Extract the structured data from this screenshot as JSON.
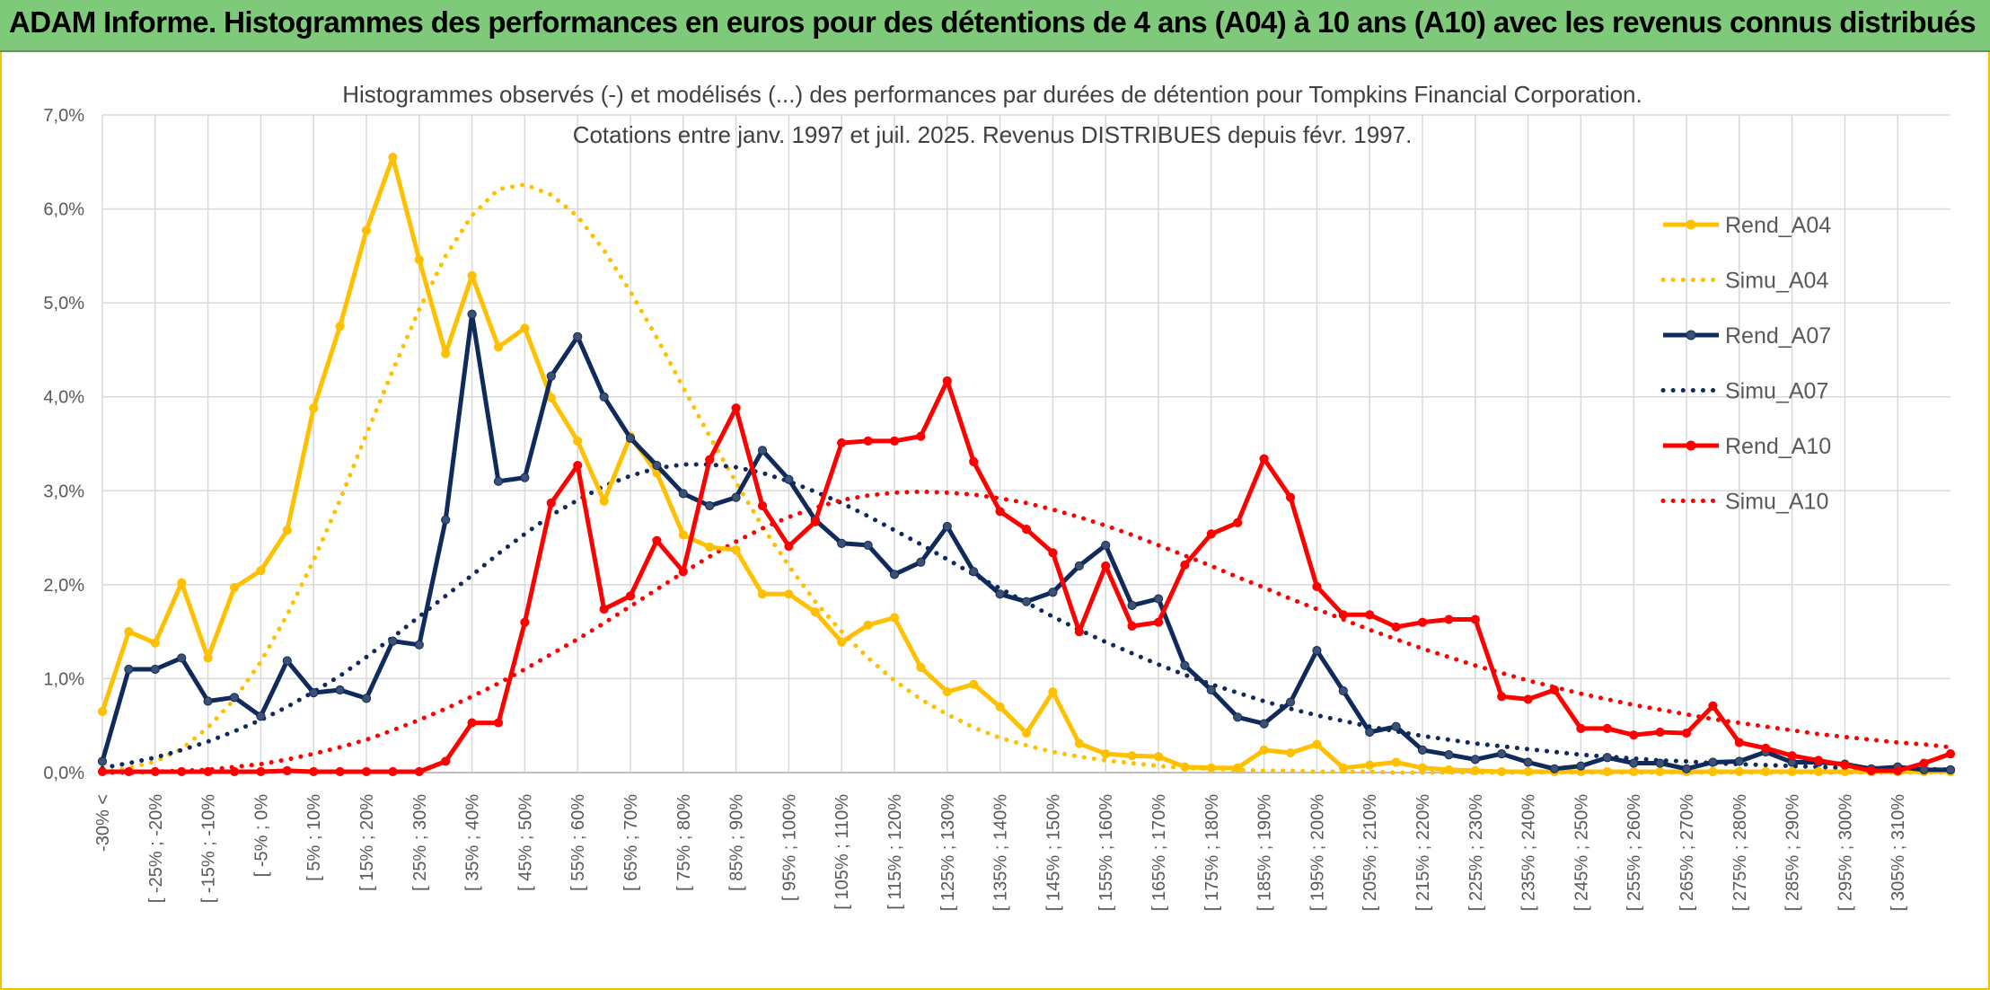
{
  "header": {
    "title": "ADAM Informe. Histogrammes des performances en euros pour des détentions de 4 ans (A04) à 10 ans (A10) avec les revenus connus distribués"
  },
  "chart_data": {
    "type": "line",
    "title_line1": "Histogrammes observés (-) et modélisés (...) des performances par durées de détention pour Tompkins Financial Corporation.",
    "title_line2": "Cotations entre janv. 1997 et juil. 2025. Revenus DISTRIBUES depuis févr. 1997.",
    "xlabel": "",
    "ylabel": "",
    "ylim": [
      0,
      7
    ],
    "y_ticks": [
      "0,0%",
      "1,0%",
      "2,0%",
      "3,0%",
      "4,0%",
      "5,0%",
      "6,0%",
      "7,0%"
    ],
    "x_tick_labels": [
      "-30% <",
      "[ -25% ; -20%",
      "[ -15% ; -10%",
      "[ -5% ; 0%",
      "[ 5% ; 10%",
      "[ 15% ; 20%",
      "[ 25% ; 30%",
      "[ 35% ; 40%",
      "[ 45% ; 50%",
      "[ 55% ; 60%",
      "[ 65% ; 70%",
      "[ 75% ; 80%",
      "[ 85% ; 90%",
      "[ 95% ; 100%",
      "[ 105% ; 110%",
      "[ 115% ; 120%",
      "[ 125% ; 130%",
      "[ 135% ; 140%",
      "[ 145% ; 150%",
      "[ 155% ; 160%",
      "[ 165% ; 170%",
      "[ 175% ; 180%",
      "[ 185% ; 190%",
      "[ 195% ; 200%",
      "[ 205% ; 210%",
      "[ 215% ; 220%",
      "[ 225% ; 230%",
      "[ 235% ; 240%",
      "[ 245% ; 250%",
      "[ 255% ; 260%",
      "[ 265% ; 270%",
      "[ 275% ; 280%",
      "[ 285% ; 290%",
      "[ 295% ; 300%",
      "[ 305% ; 310%"
    ],
    "grid": true,
    "legend_position": "right",
    "series": [
      {
        "name": "Rend_A04",
        "color": "#ffc000",
        "style": "solid",
        "markers": true,
        "values": [
          0.65,
          1.5,
          1.38,
          2.02,
          1.22,
          1.97,
          2.15,
          2.58,
          3.88,
          4.75,
          5.77,
          6.55,
          5.46,
          4.46,
          5.29,
          4.53,
          4.73,
          3.99,
          3.53,
          2.89,
          3.58,
          3.19,
          2.53,
          2.4,
          2.37,
          1.9,
          1.9,
          1.71,
          1.39,
          1.57,
          1.65,
          1.12,
          0.86,
          0.94,
          0.7,
          0.42,
          0.86,
          0.31,
          0.2,
          0.18,
          0.17,
          0.06,
          0.05,
          0.05,
          0.24,
          0.21,
          0.3,
          0.05,
          0.08,
          0.11,
          0.05,
          0.03,
          0.02,
          0.01,
          0.01,
          0.01,
          0.01,
          0.01,
          0.01,
          0.01,
          0.01,
          0.01,
          0.01,
          0.01,
          0.01,
          0.01,
          0.01,
          0.01,
          0.01,
          0.01,
          0.01
        ]
      },
      {
        "name": "Simu_A04",
        "color": "#ffc000",
        "style": "dotted",
        "markers": false,
        "values": [
          0.0,
          0.05,
          0.12,
          0.25,
          0.48,
          0.78,
          1.18,
          1.68,
          2.26,
          2.9,
          3.6,
          4.28,
          4.93,
          5.5,
          5.93,
          6.21,
          6.26,
          6.15,
          5.92,
          5.56,
          5.12,
          4.63,
          4.1,
          3.58,
          3.09,
          2.62,
          2.2,
          1.82,
          1.5,
          1.22,
          0.98,
          0.78,
          0.62,
          0.48,
          0.37,
          0.29,
          0.22,
          0.17,
          0.13,
          0.1,
          0.07,
          0.05,
          0.04,
          0.03,
          0.02,
          0.02,
          0.01,
          0.01,
          0.01,
          0.0,
          0.0,
          0.0,
          0.0,
          0.0,
          0.0,
          0.0,
          0.0,
          0.0,
          0.0,
          0.0,
          0.0,
          0.0,
          0.0,
          0.0,
          0.0,
          0.0,
          0.0,
          0.0,
          0.0,
          0.0,
          0.0
        ]
      },
      {
        "name": "Rend_A07",
        "color": "#102a5c",
        "style": "solid",
        "markers": true,
        "values": [
          0.12,
          1.1,
          1.1,
          1.22,
          0.76,
          0.8,
          0.6,
          1.19,
          0.85,
          0.88,
          0.79,
          1.4,
          1.36,
          2.69,
          4.88,
          3.1,
          3.14,
          4.22,
          4.64,
          4.0,
          3.56,
          3.27,
          2.97,
          2.84,
          2.93,
          3.43,
          3.12,
          2.69,
          2.44,
          2.42,
          2.11,
          2.24,
          2.62,
          2.14,
          1.9,
          1.82,
          1.92,
          2.2,
          2.42,
          1.78,
          1.85,
          1.14,
          0.88,
          0.59,
          0.52,
          0.75,
          1.3,
          0.87,
          0.43,
          0.49,
          0.24,
          0.19,
          0.14,
          0.2,
          0.11,
          0.04,
          0.07,
          0.16,
          0.1,
          0.1,
          0.04,
          0.11,
          0.12,
          0.22,
          0.11,
          0.11,
          0.09,
          0.04,
          0.06,
          0.03,
          0.03
        ]
      },
      {
        "name": "Simu_A07",
        "color": "#102a5c",
        "style": "dotted",
        "markers": false,
        "values": [
          0.05,
          0.1,
          0.16,
          0.24,
          0.33,
          0.44,
          0.56,
          0.7,
          0.86,
          1.03,
          1.23,
          1.44,
          1.66,
          1.88,
          2.1,
          2.33,
          2.54,
          2.74,
          2.9,
          3.05,
          3.16,
          3.24,
          3.28,
          3.28,
          3.25,
          3.19,
          3.1,
          2.99,
          2.87,
          2.73,
          2.58,
          2.43,
          2.27,
          2.11,
          1.96,
          1.81,
          1.66,
          1.52,
          1.39,
          1.27,
          1.15,
          1.04,
          0.94,
          0.85,
          0.76,
          0.68,
          0.61,
          0.55,
          0.49,
          0.44,
          0.39,
          0.35,
          0.31,
          0.28,
          0.25,
          0.22,
          0.19,
          0.17,
          0.15,
          0.13,
          0.12,
          0.1,
          0.09,
          0.08,
          0.07,
          0.06,
          0.05,
          0.05,
          0.04,
          0.04,
          0.03
        ]
      },
      {
        "name": "Rend_A10",
        "color": "#ff0000",
        "style": "solid",
        "markers": true,
        "values": [
          0.01,
          0.01,
          0.01,
          0.01,
          0.01,
          0.01,
          0.01,
          0.02,
          0.01,
          0.01,
          0.01,
          0.01,
          0.01,
          0.12,
          0.53,
          0.53,
          1.6,
          2.87,
          3.27,
          1.74,
          1.88,
          2.47,
          2.14,
          3.33,
          3.88,
          2.84,
          2.41,
          2.67,
          3.51,
          3.53,
          3.53,
          3.58,
          4.17,
          3.31,
          2.78,
          2.59,
          2.34,
          1.5,
          2.2,
          1.56,
          1.6,
          2.21,
          2.54,
          2.66,
          3.34,
          2.93,
          1.98,
          1.68,
          1.68,
          1.55,
          1.6,
          1.63,
          1.63,
          0.81,
          0.78,
          0.88,
          0.47,
          0.47,
          0.4,
          0.43,
          0.42,
          0.71,
          0.32,
          0.26,
          0.18,
          0.13,
          0.08,
          0.02,
          0.02,
          0.1,
          0.2
        ]
      },
      {
        "name": "Simu_A10",
        "color": "#ff0000",
        "style": "dotted",
        "markers": false,
        "values": [
          0.0,
          0.0,
          0.01,
          0.02,
          0.03,
          0.06,
          0.09,
          0.14,
          0.2,
          0.27,
          0.35,
          0.45,
          0.56,
          0.68,
          0.81,
          0.95,
          1.1,
          1.26,
          1.42,
          1.59,
          1.77,
          1.95,
          2.13,
          2.3,
          2.46,
          2.6,
          2.72,
          2.82,
          2.9,
          2.95,
          2.98,
          2.99,
          2.98,
          2.96,
          2.92,
          2.87,
          2.8,
          2.72,
          2.63,
          2.53,
          2.42,
          2.31,
          2.2,
          2.08,
          1.97,
          1.85,
          1.74,
          1.63,
          1.52,
          1.42,
          1.32,
          1.23,
          1.14,
          1.06,
          0.98,
          0.91,
          0.84,
          0.78,
          0.72,
          0.67,
          0.62,
          0.57,
          0.53,
          0.49,
          0.45,
          0.41,
          0.38,
          0.35,
          0.32,
          0.3,
          0.27
        ]
      }
    ]
  }
}
